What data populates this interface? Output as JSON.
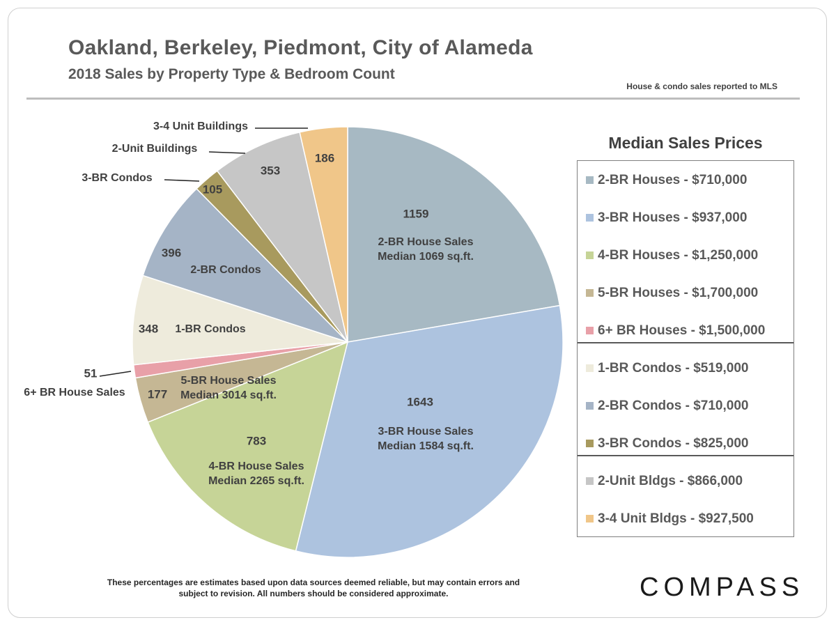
{
  "header": {
    "title": "Oakland, Berkeley, Piedmont, City of Alameda",
    "subtitle": "2018 Sales by Property Type & Bedroom Count",
    "source_note": "House & condo sales reported to MLS"
  },
  "chart_data": {
    "type": "pie",
    "title": "Oakland, Berkeley, Piedmont, City of Alameda",
    "subtitle": "2018 Sales by Property Type & Bedroom Count",
    "slices": [
      {
        "value": 1159,
        "label_lines": [
          "2-BR House Sales",
          "Median 1069 sq.ft."
        ],
        "color": "#a7b9c3"
      },
      {
        "value": 1643,
        "label_lines": [
          "3-BR House Sales",
          "Median 1584 sq.ft."
        ],
        "color": "#adc3df"
      },
      {
        "value": 783,
        "label_lines": [
          "4-BR House Sales",
          "Median 2265 sq.ft."
        ],
        "color": "#c6d497"
      },
      {
        "value": 177,
        "label_lines": [
          "5-BR House Sales",
          "Median 3014 sq.ft."
        ],
        "color": "#c5b794"
      },
      {
        "value": 51,
        "label_lines": [
          "6+ BR House Sales"
        ],
        "color": "#e8a0a8"
      },
      {
        "value": 348,
        "label_lines": [
          "1-BR Condos"
        ],
        "color": "#eeebdc"
      },
      {
        "value": 396,
        "label_lines": [
          "2-BR Condos"
        ],
        "color": "#a5b4c6"
      },
      {
        "value": 105,
        "label_lines": [
          "3-BR Condos"
        ],
        "color": "#a89a5e"
      },
      {
        "value": 353,
        "label_lines": [
          "2-Unit Buildings"
        ],
        "color": "#c6c6c6"
      },
      {
        "value": 186,
        "label_lines": [
          "3-4 Unit Buildings"
        ],
        "color": "#f0c689"
      }
    ]
  },
  "legend": {
    "title": "Median Sales Prices",
    "groups": [
      [
        {
          "label": "2-BR Houses - $710,000",
          "color": "#a7b9c3"
        },
        {
          "label": "3-BR Houses - $937,000",
          "color": "#adc3df"
        },
        {
          "label": "4-BR Houses - $1,250,000",
          "color": "#c6d497"
        },
        {
          "label": "5-BR Houses - $1,700,000",
          "color": "#c5b794"
        },
        {
          "label": "6+ BR Houses - $1,500,000",
          "color": "#e8a0a8"
        }
      ],
      [
        {
          "label": "1-BR Condos - $519,000",
          "color": "#eeebdc"
        },
        {
          "label": "2-BR Condos - $710,000",
          "color": "#a5b4c6"
        },
        {
          "label": "3-BR Condos - $825,000",
          "color": "#a89a5e"
        }
      ],
      [
        {
          "label": "2-Unit Bldgs - $866,000",
          "color": "#c6c6c6"
        },
        {
          "label": "3-4 Unit Bldgs - $927,500",
          "color": "#f0c689"
        }
      ]
    ]
  },
  "footer": {
    "disclaimer_line1": "These percentages are estimates based upon data sources deemed reliable, but may contain errors and",
    "disclaimer_line2": "subject to revision. All numbers should be considered approximate.",
    "logo": "COMPASS"
  }
}
